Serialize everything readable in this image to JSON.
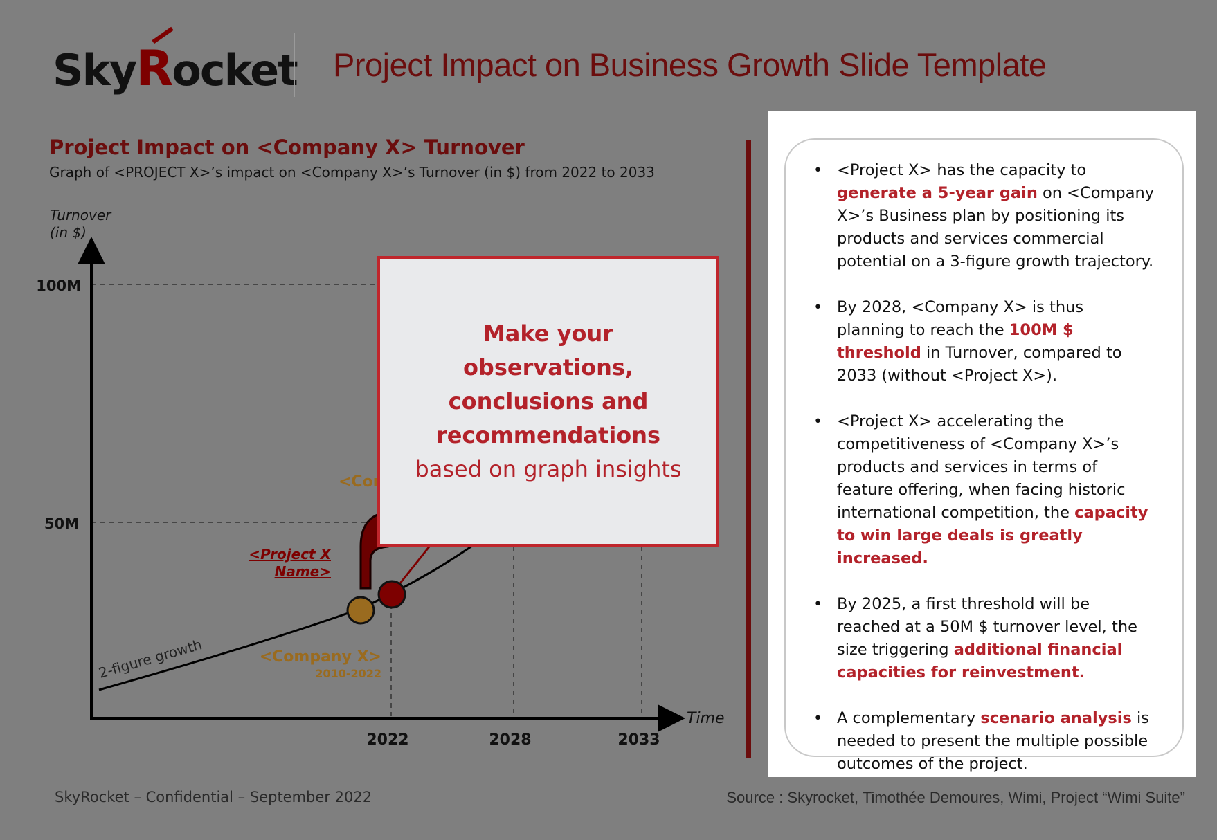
{
  "logo": {
    "prefix": "Sky",
    "accent": "R",
    "suffix": "ocket"
  },
  "title": "Project Impact on Business Growth Slide Template",
  "chart_data": {
    "type": "line",
    "title": "Project Impact on <Company X> Turnover",
    "subtitle": "Graph of <PROJECT X>’s impact on <Company X>’s Turnover (in $) from 2022 to 2033",
    "ylabel_line1": "Turnover",
    "ylabel_line2": "(in $)",
    "xlabel": "Time",
    "y_ticks": [
      "100M",
      "50M"
    ],
    "x_ticks": [
      "2022",
      "2028",
      "2033"
    ],
    "grid": "dashed reference lines at tick values",
    "series_label": "2-figure growth",
    "company_label": "<Company X>",
    "company_period": "2010-2022",
    "company_label_top": "<Company X>",
    "project_label_line1": "<Project X",
    "project_label_line2": "Name>"
  },
  "callout": {
    "bold_line1": "Make your observations,",
    "bold_line2": "conclusions and",
    "bold_line3": "recommendations",
    "normal_line": "based on graph insights"
  },
  "bullets": [
    {
      "a": "<Project X> has the capacity to ",
      "b": "generate a 5-year gain",
      "c": " on <Company X>’s Business plan by positioning its products and services commercial potential on a 3-figure growth trajectory."
    },
    {
      "a": "By 2028, <Company X> is thus planning to reach the ",
      "b": "100M $ threshold",
      "c": " in Turnover, compared to 2033 (without <Project X>)."
    },
    {
      "a": "<Project X> accelerating the competitiveness of <Company X>’s products and services in terms of feature offering, when facing historic international competition, the ",
      "b": "capacity to win large deals is greatly increased.",
      "c": ""
    },
    {
      "a": "By 2025, a first threshold will be reached at a 50M $ turnover level, the size triggering ",
      "b": "additional financial capacities for reinvestment.",
      "c": ""
    },
    {
      "a": "A complementary ",
      "b": "scenario analysis",
      "c": " is needed to present the multiple possible outcomes of the project."
    }
  ],
  "footer": {
    "left": "SkyRocket – Confidential – September 2022",
    "right": "Source : Skyrocket, Timothée Demoures, Wimi, Project “Wimi Suite”"
  },
  "colors": {
    "background": "#7f7f7f",
    "brand_dark_red": "#6b0d0d",
    "accent_red": "#b3222a",
    "gold": "#9a6b1f"
  }
}
